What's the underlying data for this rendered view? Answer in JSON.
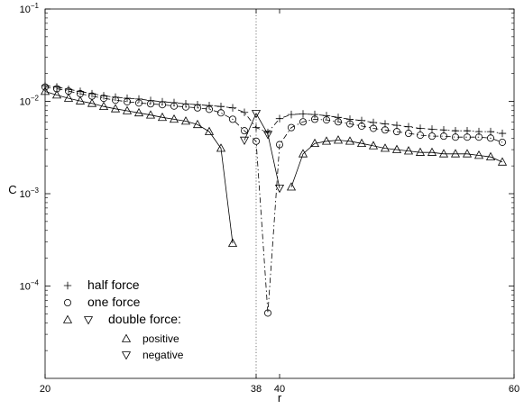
{
  "chart_data": {
    "type": "scatter",
    "xlabel": "r",
    "ylabel": "C",
    "xlim": [
      20,
      60
    ],
    "ylim": [
      1e-05,
      0.1
    ],
    "yscale": "log",
    "grid": false,
    "legend_position": "bottom-left",
    "x_ticks": [
      {
        "value": 20,
        "label": "20"
      },
      {
        "value": 38,
        "label": "38"
      },
      {
        "value": 40,
        "label": "40"
      },
      {
        "value": 60,
        "label": "60"
      }
    ],
    "y_ticks": [
      {
        "value": 0.1,
        "base": "10",
        "exp": "−1"
      },
      {
        "value": 0.01,
        "base": "10",
        "exp": "−2"
      },
      {
        "value": 0.001,
        "base": "10",
        "exp": "−3"
      },
      {
        "value": 0.0001,
        "base": "10",
        "exp": "−4"
      }
    ],
    "reference_line": {
      "x": 38,
      "style": "dotted"
    },
    "series": [
      {
        "name": "half force",
        "marker": "plus",
        "line": "dash-dot",
        "x": [
          20,
          21,
          22,
          23,
          24,
          25,
          26,
          27,
          28,
          29,
          30,
          31,
          32,
          33,
          34,
          35,
          36,
          37,
          38,
          39,
          40,
          41,
          42,
          43,
          44,
          45,
          46,
          47,
          48,
          49,
          50,
          51,
          52,
          53,
          54,
          55,
          56,
          57,
          58,
          59
        ],
        "y": [
          0.0148,
          0.0143,
          0.0135,
          0.0128,
          0.0121,
          0.0115,
          0.0111,
          0.0108,
          0.0106,
          0.0102,
          0.0099,
          0.0097,
          0.0094,
          0.0092,
          0.009,
          0.0088,
          0.0085,
          0.0076,
          0.0052,
          0.0046,
          0.0065,
          0.0072,
          0.0073,
          0.0072,
          0.007,
          0.0067,
          0.0064,
          0.0062,
          0.0059,
          0.0057,
          0.0055,
          0.0053,
          0.0051,
          0.005,
          0.0049,
          0.0048,
          0.0048,
          0.0047,
          0.0047,
          0.0045
        ]
      },
      {
        "name": "one force",
        "marker": "circle",
        "line": "dash-dot",
        "x": [
          20,
          21,
          22,
          23,
          24,
          25,
          26,
          27,
          28,
          29,
          30,
          31,
          32,
          33,
          34,
          35,
          36,
          37,
          38,
          39,
          40,
          41,
          42,
          43,
          44,
          45,
          46,
          47,
          48,
          49,
          50,
          51,
          52,
          53,
          54,
          55,
          56,
          57,
          58,
          59
        ],
        "y": [
          0.0143,
          0.0137,
          0.0129,
          0.0121,
          0.0114,
          0.0108,
          0.0103,
          0.0099,
          0.0096,
          0.0094,
          0.0092,
          0.0089,
          0.0087,
          0.0085,
          0.0082,
          0.0075,
          0.0064,
          0.0048,
          0.0037,
          5.1e-05,
          0.0034,
          0.0052,
          0.006,
          0.0064,
          0.0063,
          0.006,
          0.0057,
          0.0054,
          0.0051,
          0.0049,
          0.0047,
          0.0045,
          0.0043,
          0.0042,
          0.0042,
          0.0041,
          0.0041,
          0.0041,
          0.004,
          0.0036
        ]
      },
      {
        "name": "positive",
        "marker": "triangle-up",
        "line": "solid",
        "x": [
          20,
          21,
          22,
          23,
          24,
          25,
          26,
          27,
          28,
          29,
          30,
          31,
          32,
          33,
          34,
          35,
          36
        ],
        "y": [
          0.0128,
          0.0117,
          0.0108,
          0.0101,
          0.0095,
          0.0088,
          0.0083,
          0.0079,
          0.0075,
          0.0071,
          0.0067,
          0.0064,
          0.0061,
          0.0056,
          0.0047,
          0.0031,
          0.00029
        ]
      },
      {
        "name": "negative",
        "marker": "triangle-down",
        "line": "solid",
        "x": [
          37,
          38,
          39,
          40
        ],
        "y": [
          0.0038,
          0.0074,
          0.0044,
          0.00115
        ]
      },
      {
        "name": "positive",
        "marker": "triangle-up",
        "line": "solid",
        "x": [
          41,
          42,
          43,
          44,
          45,
          46,
          47,
          48,
          49,
          50,
          51,
          52,
          53,
          54,
          55,
          56,
          57,
          58,
          59
        ],
        "y": [
          0.00118,
          0.0027,
          0.0035,
          0.0037,
          0.0038,
          0.0037,
          0.0035,
          0.0033,
          0.0031,
          0.003,
          0.0029,
          0.0028,
          0.0028,
          0.0027,
          0.0027,
          0.0027,
          0.0026,
          0.0025,
          0.0022
        ]
      }
    ],
    "legend": [
      {
        "label": "half force",
        "markers": [
          "plus"
        ],
        "level": "main"
      },
      {
        "label": "one force",
        "markers": [
          "circle"
        ],
        "level": "main"
      },
      {
        "label": "double force:",
        "markers": [
          "triangle-up",
          "triangle-down"
        ],
        "level": "main"
      },
      {
        "label": "positive",
        "markers": [
          "triangle-up"
        ],
        "level": "sub"
      },
      {
        "label": "negative",
        "markers": [
          "triangle-down"
        ],
        "level": "sub"
      }
    ]
  }
}
